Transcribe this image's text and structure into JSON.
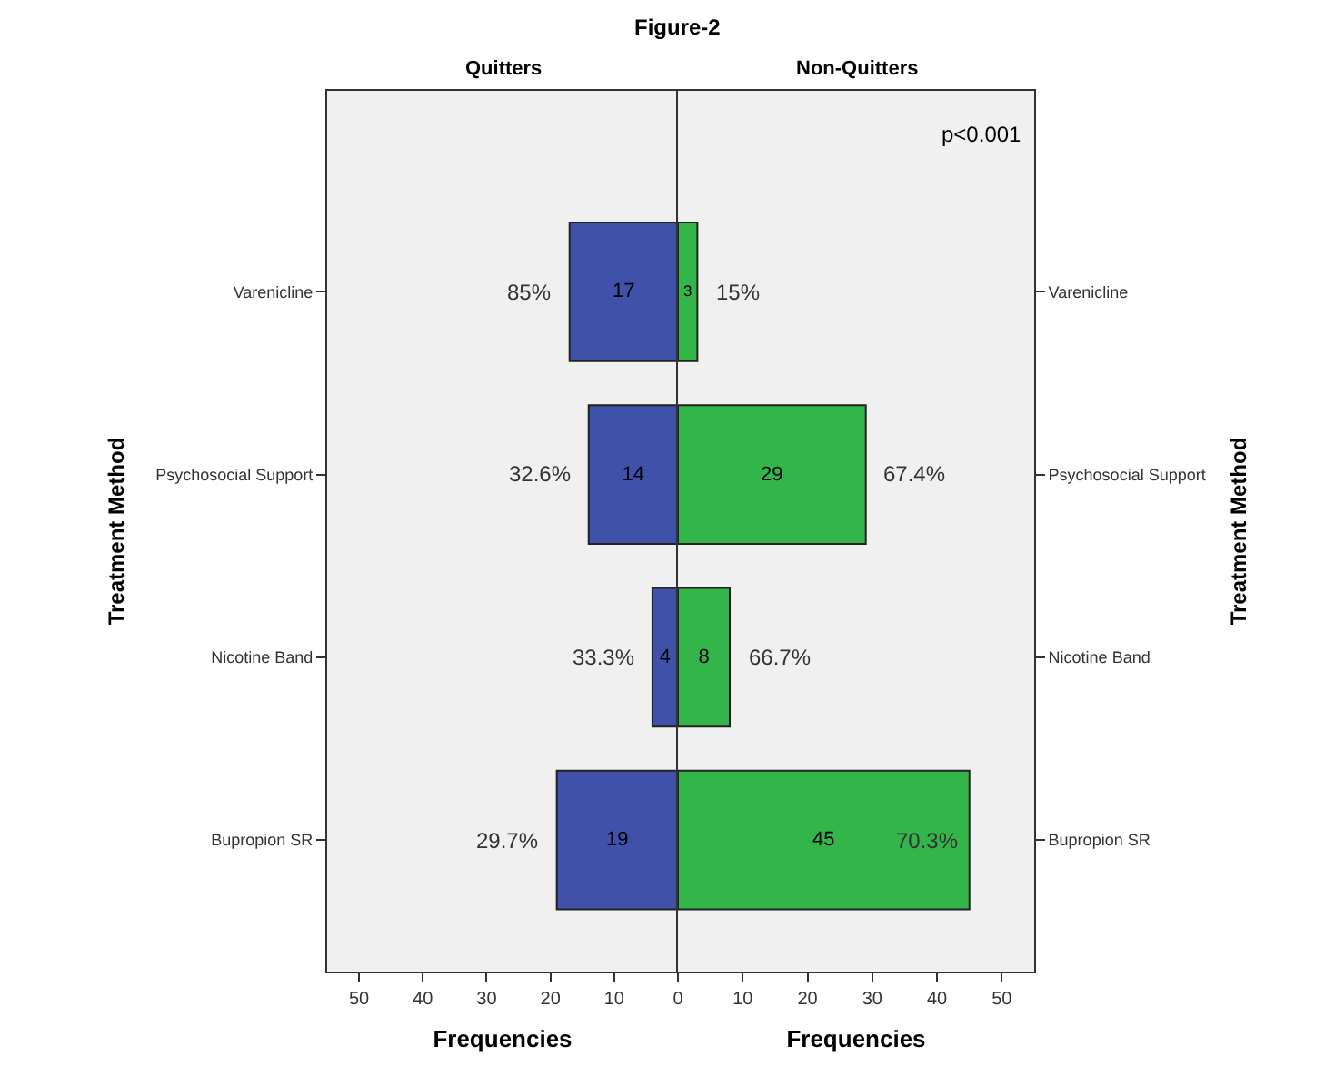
{
  "chart_data": [
    {
      "type": "bar",
      "orientation": "horizontal",
      "title": "Figure-2",
      "subtitle": "Quitters",
      "xlabel": "Frequencies",
      "ylabel": "Treatment Method",
      "categories": [
        "Varenicline",
        "Psychosocial Support",
        "Nicotine Band",
        "Bupropion SR"
      ],
      "series": [
        {
          "color": "#3f51a8",
          "values": [
            17,
            14,
            4,
            19
          ]
        }
      ],
      "data_labels": true,
      "xlim": [
        55,
        0
      ],
      "xticks": [
        50,
        40,
        30,
        20,
        10,
        {
          "value": 0,
          "label": null
        }
      ],
      "grid": false,
      "annotations": [
        {
          "text": "85%",
          "x": 17,
          "y": "Varenicline"
        },
        {
          "text": "32.6%",
          "x": 14,
          "y": "Psychosocial Support"
        },
        {
          "text": "33.3%",
          "x": 4,
          "y": "Nicotine Band"
        },
        {
          "text": "29.7%",
          "x": 19,
          "y": "Bupropion SR"
        }
      ]
    },
    {
      "type": "bar",
      "orientation": "horizontal",
      "subtitle": "Non-Quitters",
      "xlabel": "Frequencies",
      "ylabel": "Treatment Method",
      "categories": [
        "Varenicline",
        "Psychosocial Support",
        "Nicotine Band",
        "Bupropion SR"
      ],
      "series": [
        {
          "color": "#33b54a",
          "values": [
            3,
            29,
            8,
            45
          ]
        }
      ],
      "data_labels": true,
      "xlim": [
        0,
        55
      ],
      "xticks": [
        0,
        10,
        20,
        30,
        40,
        50
      ],
      "grid": false,
      "annotations": [
        "p<0.001",
        {
          "text": "15%",
          "x": 3,
          "y": "Varenicline"
        },
        {
          "text": "67.4%",
          "x": 29,
          "y": "Psychosocial Support"
        },
        {
          "text": "66.7%",
          "x": 8,
          "y": "Nicotine Band"
        },
        {
          "text": "70.3%",
          "x": 45,
          "y": "Bupropion SR"
        }
      ]
    }
  ]
}
